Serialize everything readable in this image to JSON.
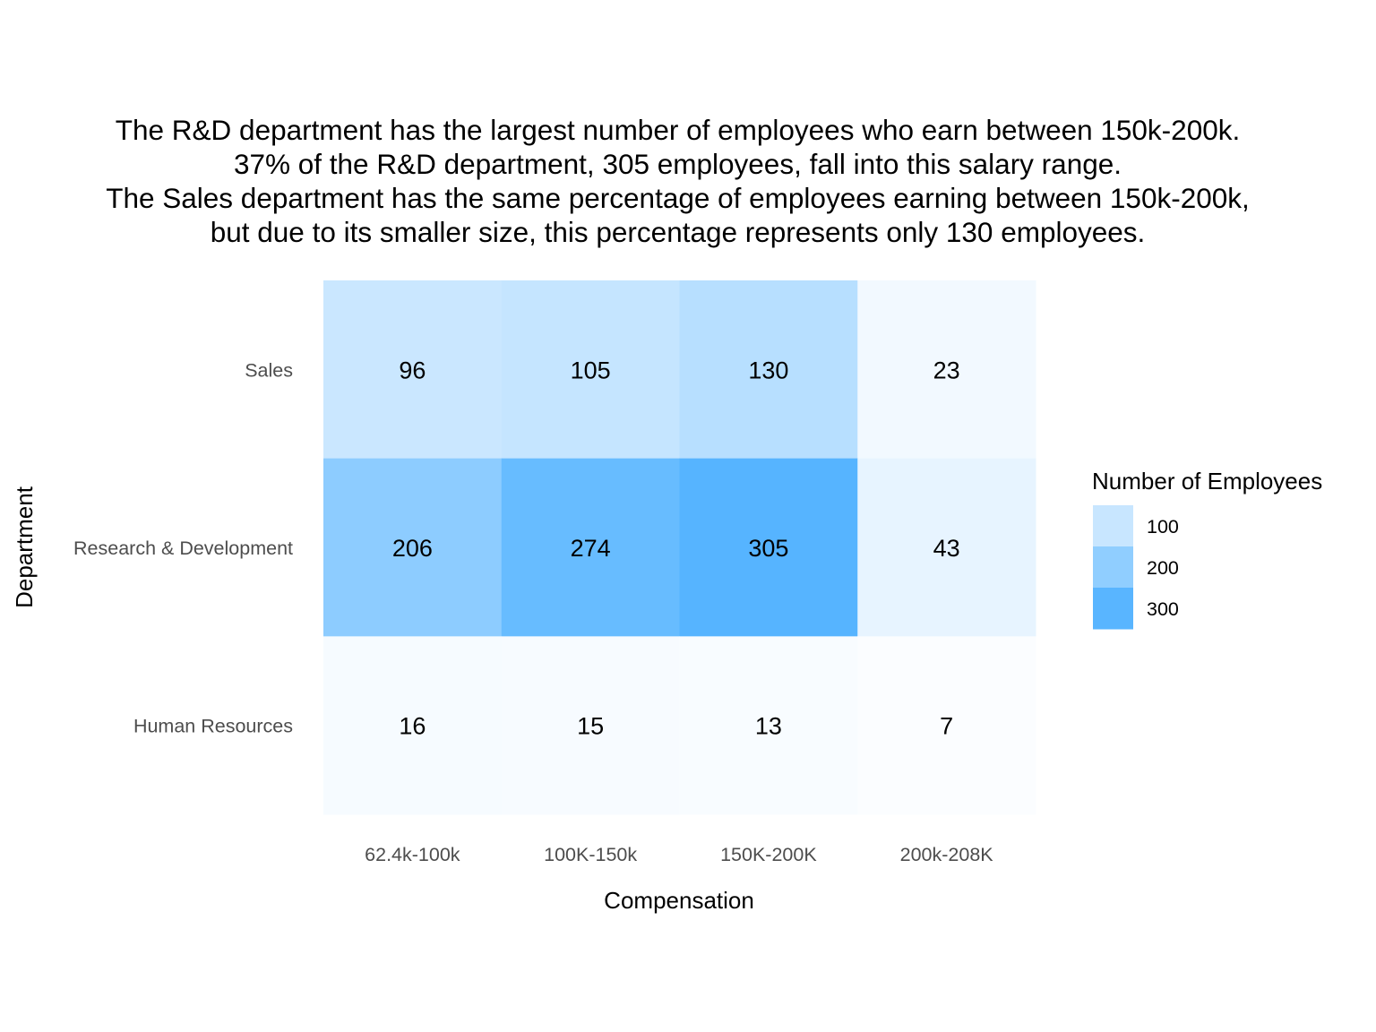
{
  "chart_data": {
    "type": "heatmap",
    "title_lines": [
      "The R&D department has the largest number of employees who earn between 150k-200k.",
      "37% of the R&D department, 305 employees, fall into this salary range.",
      "The Sales department has the same percentage of employees earning between 150k-200k,",
      "but due to its smaller size, this percentage represents only 130 employees."
    ],
    "xlabel": "Compensation",
    "ylabel": "Department",
    "x_categories": [
      "62.4k-100k",
      "100K-150k",
      "150K-200K",
      "200k-208K"
    ],
    "y_categories": [
      "Sales",
      "Research & Development",
      "Human Resources"
    ],
    "values": [
      [
        96,
        105,
        130,
        23
      ],
      [
        206,
        274,
        305,
        43
      ],
      [
        16,
        15,
        13,
        7
      ]
    ],
    "legend": {
      "title": "Number of Employees",
      "breaks": [
        100,
        200,
        300
      ],
      "placement": "right"
    },
    "color_low": "#ffffff",
    "color_high": "#56b4ff",
    "color_max_value": 305
  }
}
